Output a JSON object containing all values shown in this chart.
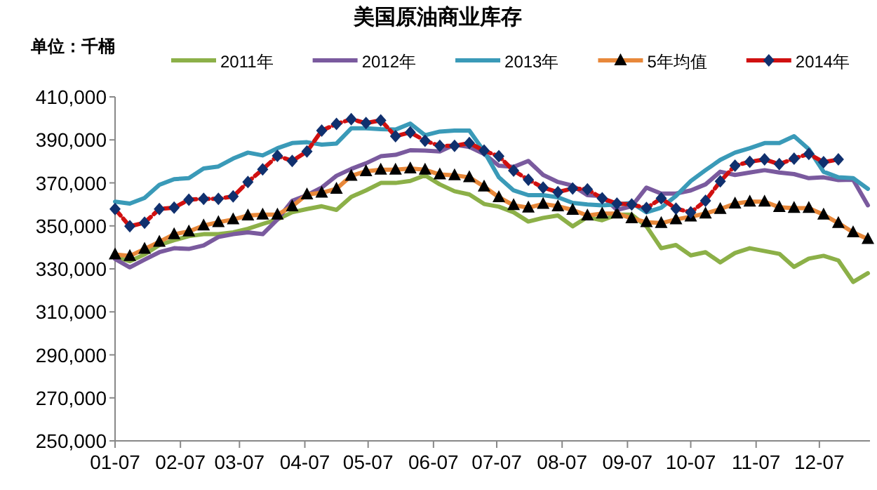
{
  "chart_data": {
    "type": "line",
    "title": "美国原油商业库存",
    "subtitle": "单位：千桶",
    "legend": "top",
    "x": [
      "--01-07",
      "--01-14",
      "--01-21",
      "--01-28",
      "--02-04",
      "--02-11",
      "--02-18",
      "--02-25",
      "--03-04",
      "--03-11",
      "--03-18",
      "--03-25",
      "--04-01",
      "--04-08",
      "--04-15",
      "--04-22",
      "--04-29",
      "--05-06",
      "--05-13",
      "--05-20",
      "--05-27",
      "--06-03",
      "--06-10",
      "--06-17",
      "--06-24",
      "--07-01",
      "--07-08",
      "--07-15",
      "--07-22",
      "--07-29",
      "--08-05",
      "--08-12",
      "--08-19",
      "--08-26",
      "--09-02",
      "--09-09",
      "--09-16",
      "--09-23",
      "--09-30",
      "--10-07",
      "--10-14",
      "--10-21",
      "--10-28",
      "--11-04",
      "--11-11",
      "--11-18",
      "--11-25",
      "--12-02",
      "--12-09",
      "--12-16",
      "--12-23",
      "--12-30"
    ],
    "xlim": [
      "--01-07",
      "--12-31"
    ],
    "xticks": [
      {
        "value": "--01-07",
        "label": "01-07"
      },
      {
        "value": "--02-07",
        "label": "02-07"
      },
      {
        "value": "--03-07",
        "label": "03-07"
      },
      {
        "value": "--04-07",
        "label": "04-07"
      },
      {
        "value": "--05-07",
        "label": "05-07"
      },
      {
        "value": "--06-07",
        "label": "06-07"
      },
      {
        "value": "--07-07",
        "label": "07-07"
      },
      {
        "value": "--08-07",
        "label": "08-07"
      },
      {
        "value": "--09-07",
        "label": "09-07"
      },
      {
        "value": "--10-07",
        "label": "10-07"
      },
      {
        "value": "--11-07",
        "label": "11-07"
      },
      {
        "value": "--12-07",
        "label": "12-07"
      }
    ],
    "ylim": [
      250000,
      410000
    ],
    "yticks": [
      {
        "value": 250000,
        "label": "250,000"
      },
      {
        "value": 270000,
        "label": "270,000"
      },
      {
        "value": 290000,
        "label": "290,000"
      },
      {
        "value": 310000,
        "label": "310,000"
      },
      {
        "value": 330000,
        "label": "330,000"
      },
      {
        "value": 350000,
        "label": "350,000"
      },
      {
        "value": 370000,
        "label": "370,000"
      },
      {
        "value": 390000,
        "label": "390,000"
      },
      {
        "value": 410000,
        "label": "410,000"
      }
    ],
    "series": [
      {
        "name": "2011年",
        "color": "#8cb048",
        "values": [
          335700,
          333500,
          336700,
          341100,
          343300,
          345200,
          346100,
          346100,
          347000,
          348700,
          350900,
          353000,
          356300,
          357800,
          359100,
          357400,
          363500,
          366500,
          370000,
          370000,
          370900,
          373500,
          369300,
          366100,
          364600,
          360200,
          358900,
          356300,
          352000,
          353700,
          354800,
          349800,
          354100,
          352600,
          355200,
          355200,
          349800,
          339600,
          341100,
          336300,
          337800,
          333000,
          337400,
          339600,
          338300,
          337000,
          330900,
          334800,
          336100,
          333900,
          323900,
          328000
        ]
      },
      {
        "name": "2012年",
        "color": "#7a5a9e",
        "values": [
          334600,
          330700,
          334300,
          337800,
          339600,
          339300,
          340900,
          344800,
          346100,
          347000,
          346100,
          353000,
          361700,
          364300,
          367800,
          373300,
          376500,
          379100,
          382400,
          383000,
          385200,
          385000,
          384600,
          387800,
          386700,
          383500,
          378000,
          377400,
          380200,
          373700,
          370400,
          368700,
          364300,
          363900,
          357400,
          359100,
          367800,
          365000,
          365000,
          366500,
          369300,
          375200,
          373700,
          374800,
          375900,
          374800,
          374100,
          372200,
          372600,
          371300,
          371500,
          359600
        ]
      },
      {
        "name": "2013年",
        "color": "#3a9ab8",
        "values": [
          361300,
          360400,
          363000,
          369100,
          371700,
          372200,
          376700,
          377600,
          381300,
          384100,
          382800,
          386100,
          388500,
          388900,
          387800,
          388300,
          395400,
          395400,
          395000,
          394800,
          397600,
          392200,
          393900,
          394300,
          394300,
          384600,
          372600,
          366500,
          364300,
          364300,
          363300,
          360700,
          360000,
          359600,
          360000,
          360700,
          356300,
          358500,
          363900,
          370900,
          375900,
          380700,
          384100,
          386100,
          388500,
          388500,
          391700,
          385700,
          375200,
          372600,
          372200,
          367200
        ]
      },
      {
        "name": "5年均值",
        "color": "#e8883a",
        "marker": "triangle",
        "values": [
          336700,
          336000,
          339300,
          342600,
          346100,
          347400,
          350200,
          351700,
          353000,
          354800,
          355200,
          355200,
          359100,
          364600,
          365400,
          367200,
          373300,
          375400,
          376100,
          376100,
          376700,
          376100,
          373900,
          373500,
          372600,
          368300,
          363300,
          359600,
          358500,
          360200,
          359100,
          357400,
          354800,
          355700,
          355700,
          353500,
          351700,
          351300,
          353000,
          354300,
          355700,
          357800,
          360400,
          361300,
          361300,
          358700,
          358300,
          358300,
          355200,
          351300,
          347000,
          343900
        ]
      },
      {
        "name": "2014年",
        "color": "#d01010",
        "marker": "diamond",
        "line_style": "dashed",
        "values": [
          357800,
          349800,
          351500,
          357800,
          358500,
          362200,
          362600,
          362600,
          363700,
          370400,
          376300,
          382600,
          380200,
          384600,
          394300,
          397400,
          399600,
          397800,
          399100,
          391700,
          393500,
          389600,
          387200,
          387200,
          388500,
          385000,
          382400,
          375700,
          371500,
          367800,
          365700,
          367400,
          367000,
          362800,
          360400,
          360000,
          358300,
          362800,
          358000,
          356300,
          361700,
          370700,
          378000,
          379800,
          380900,
          378700,
          381300,
          383500,
          379600,
          380900,
          null,
          null
        ]
      }
    ]
  }
}
